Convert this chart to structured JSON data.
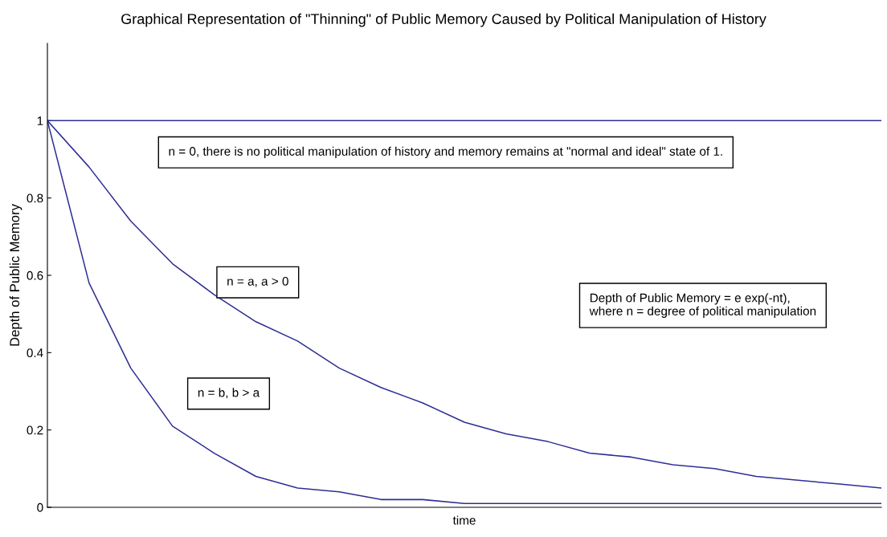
{
  "chart_data": {
    "type": "line",
    "title": "Graphical Representation of \"Thinning\" of Public Memory Caused by Political Manipulation of History",
    "xlabel": "time",
    "ylabel": "Depth of Public Memory",
    "categories": [
      null,
      null,
      null,
      null,
      null,
      null,
      null,
      null,
      null,
      null,
      null,
      null,
      null,
      null,
      null,
      null,
      null,
      null,
      null,
      null,
      null
    ],
    "series": [
      {
        "color": "#2e2e96",
        "values": [
          1,
          1,
          1,
          1,
          1,
          1,
          1,
          1,
          1,
          1,
          1,
          1,
          1,
          1,
          1,
          1,
          1,
          1,
          1,
          1,
          1
        ]
      },
      {
        "color": "#2e2e96",
        "values": [
          1,
          0.88,
          0.74,
          0.63,
          0.55,
          0.48,
          0.43,
          0.36,
          0.31,
          0.27,
          0.22,
          0.19,
          0.17,
          0.14,
          0.13,
          0.11,
          0.1,
          0.08,
          0.07,
          0.06,
          0.05
        ]
      },
      {
        "color": "#2e2e96",
        "values": [
          1,
          0.58,
          0.36,
          0.21,
          0.14,
          0.08,
          0.05,
          0.04,
          0.02,
          0.02,
          0.01,
          0.01,
          0.01,
          0.01,
          0.01,
          0.01,
          0.01,
          0.01,
          0.01,
          0.01,
          0.01
        ]
      }
    ],
    "annotations": [
      "n = 0, there is no political manipulation of history and memory remains at \"normal and ideal\" state of 1.",
      "n = a, a > 0",
      "n = b, b > a",
      "Depth of Public Memory = e exp(-nt),\nwhere n = degree of political manipulation"
    ],
    "ylim": [
      0,
      1.2
    ],
    "yticks": [
      0,
      0.2,
      0.4,
      0.6,
      0.8,
      1
    ],
    "grid": false,
    "legend": false,
    "marker": "none",
    "line_style": "solid"
  }
}
